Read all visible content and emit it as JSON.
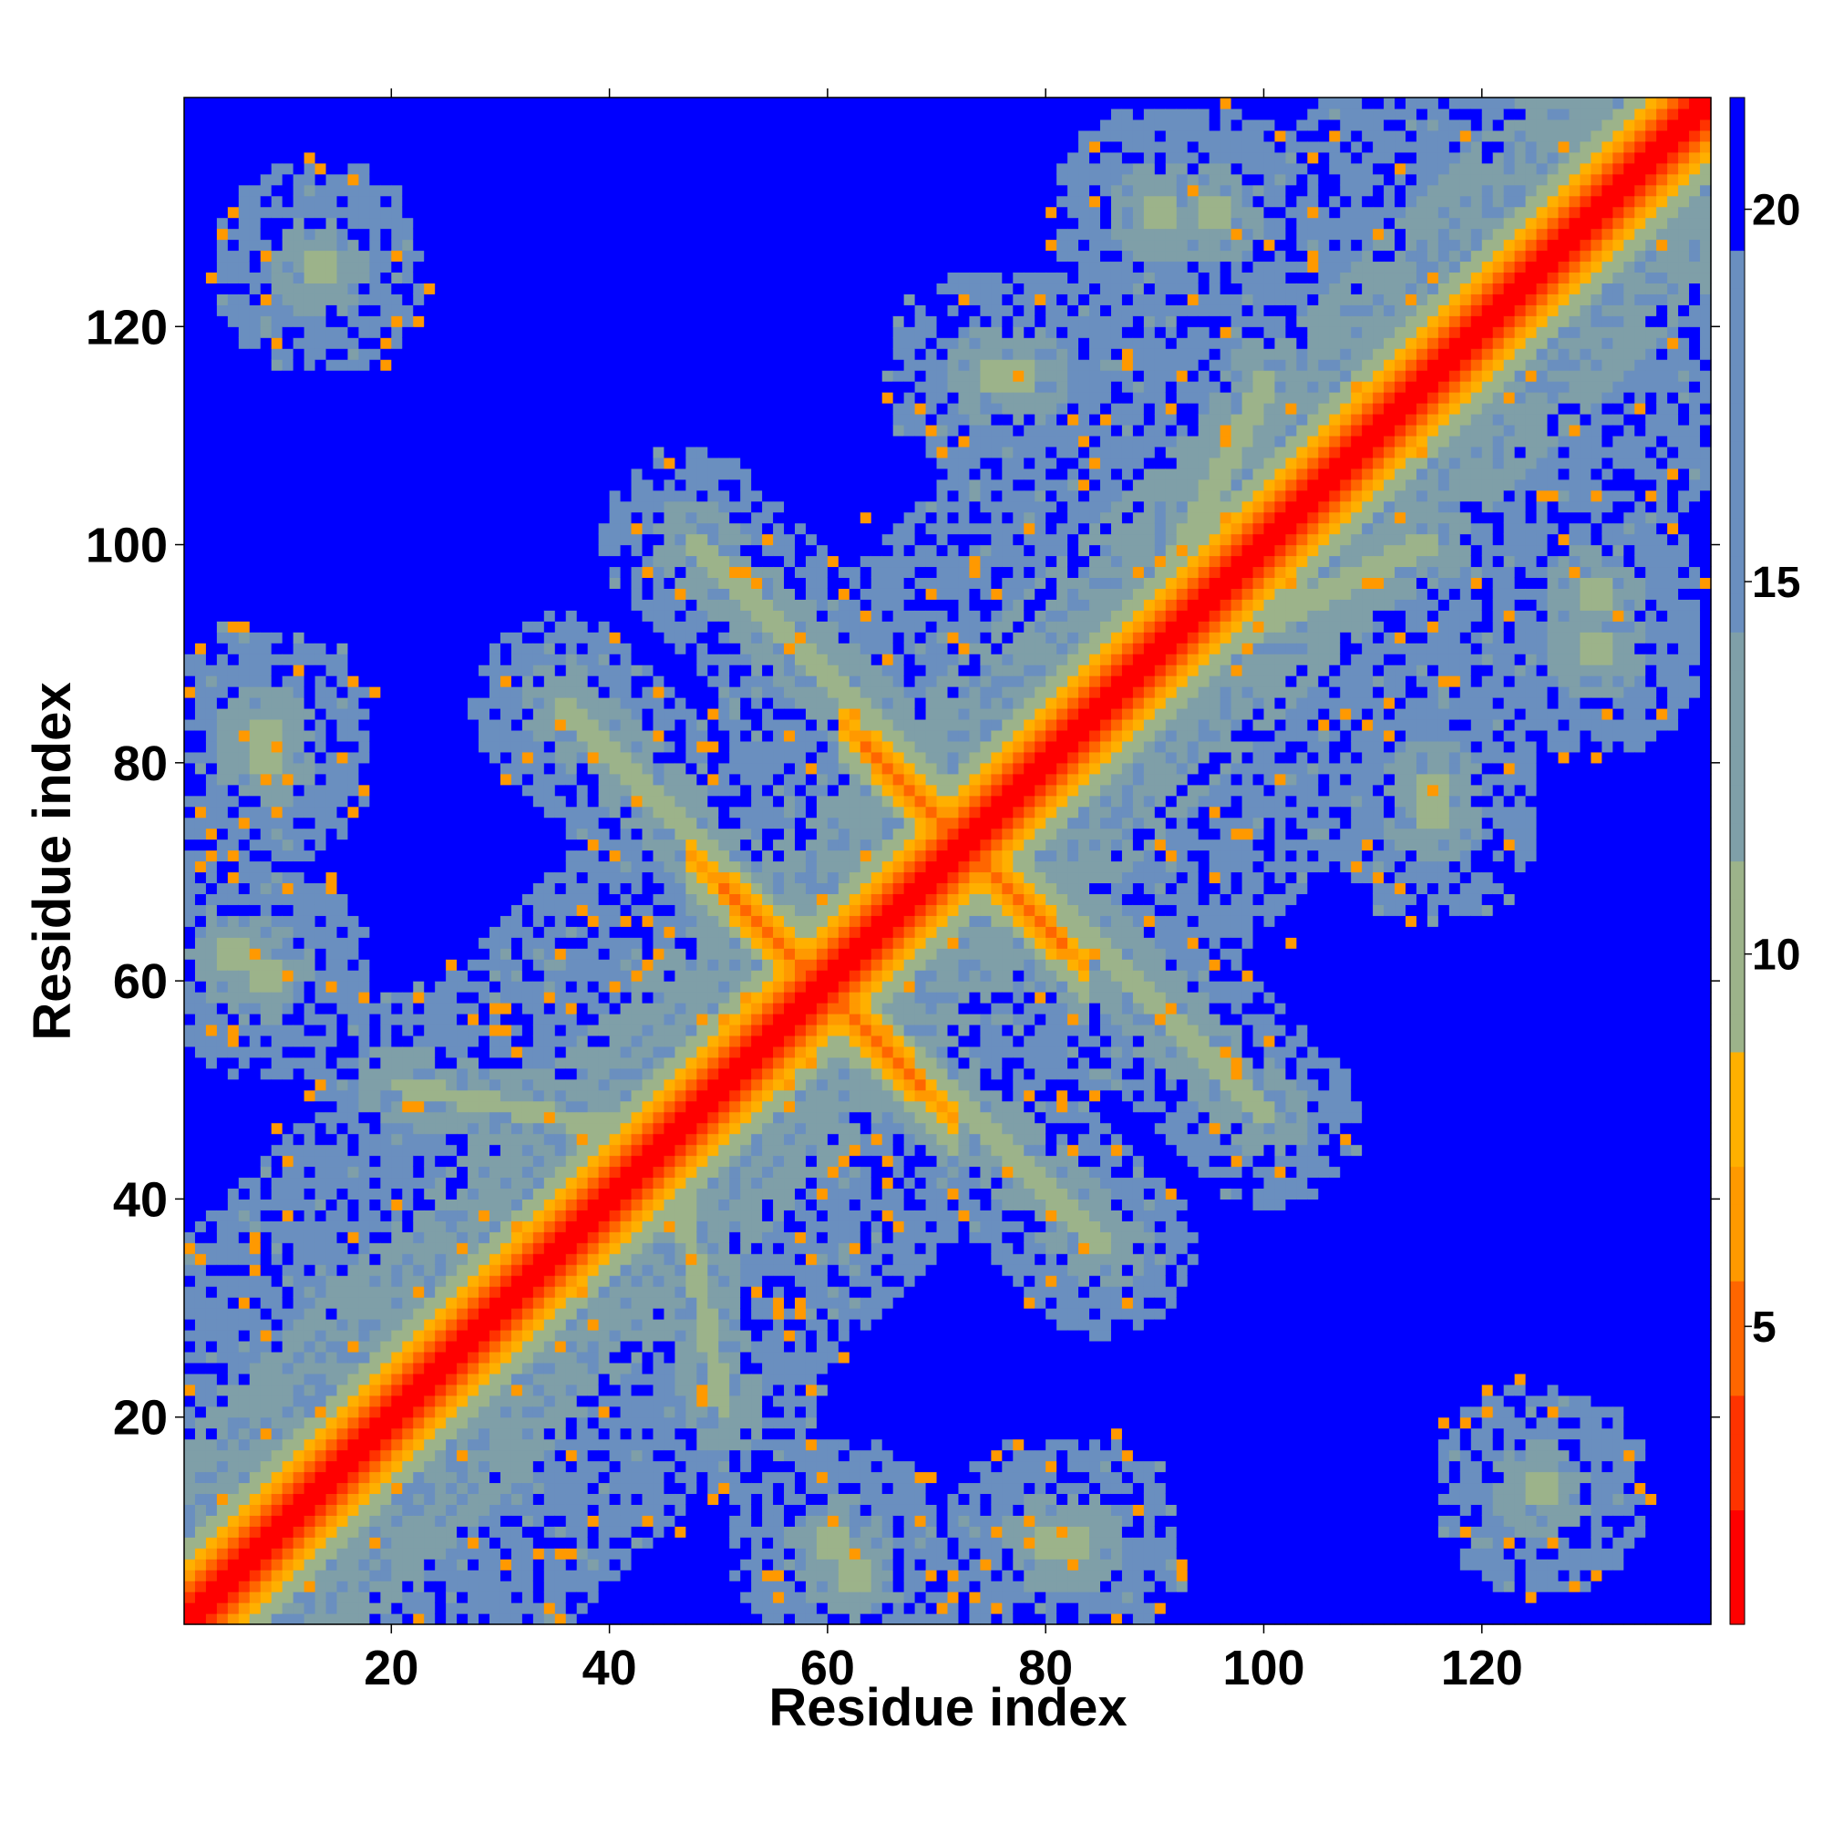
{
  "chart_data": {
    "type": "heatmap",
    "title": "",
    "xlabel": "Residue index",
    "ylabel": "Residue index",
    "xlim": [
      1,
      141
    ],
    "ylim": [
      1,
      141
    ],
    "x_ticks": [
      20,
      40,
      60,
      80,
      100,
      120
    ],
    "y_ticks": [
      20,
      40,
      60,
      80,
      100,
      120
    ],
    "colorbar": {
      "ticks": [
        5,
        10,
        15,
        20
      ],
      "range": [
        1,
        21.5
      ],
      "colors_low_to_high": [
        "#ff0000",
        "#ff3300",
        "#ff6600",
        "#ff9900",
        "#ffb000",
        "#9cb38a",
        "#7f9fa8",
        "#6a8fbf",
        "#0000ff"
      ]
    },
    "grid": false,
    "legend": "colorbar-right",
    "description_of_data": "Symmetric residue-residue distance map: red diagonal band; anti-diagonal contact streaks crossing near residue 60 and 72; local clusters near (10,125), (125,12), (10,80), (115,75); large far-distance (blue) regions.",
    "structure": {
      "diagonal_width": 1.6,
      "antidiagonal_crossings": [
        {
          "center": [
            59,
            59
          ],
          "extent": 12
        },
        {
          "center": [
            72,
            72
          ],
          "extent": 11
        }
      ],
      "clusters": [
        {
          "center": [
            13,
            125
          ],
          "radius": 9
        },
        {
          "center": [
            125,
            13
          ],
          "radius": 9
        },
        {
          "center": [
            8,
            80
          ],
          "radius": 10
        },
        {
          "center": [
            80,
            8
          ],
          "radius": 10
        },
        {
          "center": [
            8,
            60
          ],
          "radius": 9
        },
        {
          "center": [
            60,
            8
          ],
          "radius": 9
        },
        {
          "center": [
            115,
            75
          ],
          "radius": 9
        },
        {
          "center": [
            75,
            115
          ],
          "radius": 9
        },
        {
          "center": [
            77,
            115
          ],
          "radius": 8
        },
        {
          "center": [
            115,
            77
          ],
          "radius": 8
        },
        {
          "center": [
            95,
            130
          ],
          "radius": 9
        },
        {
          "center": [
            130,
            95
          ],
          "radius": 9
        },
        {
          "center": [
            130,
            90
          ],
          "radius": 9
        },
        {
          "center": [
            90,
            130
          ],
          "radius": 9
        },
        {
          "center": [
            62,
            5
          ],
          "radius": 8
        },
        {
          "center": [
            5,
            62
          ],
          "radius": 8
        },
        {
          "center": [
            82,
            8
          ],
          "radius": 8
        },
        {
          "center": [
            8,
            82
          ],
          "radius": 8
        }
      ]
    }
  }
}
